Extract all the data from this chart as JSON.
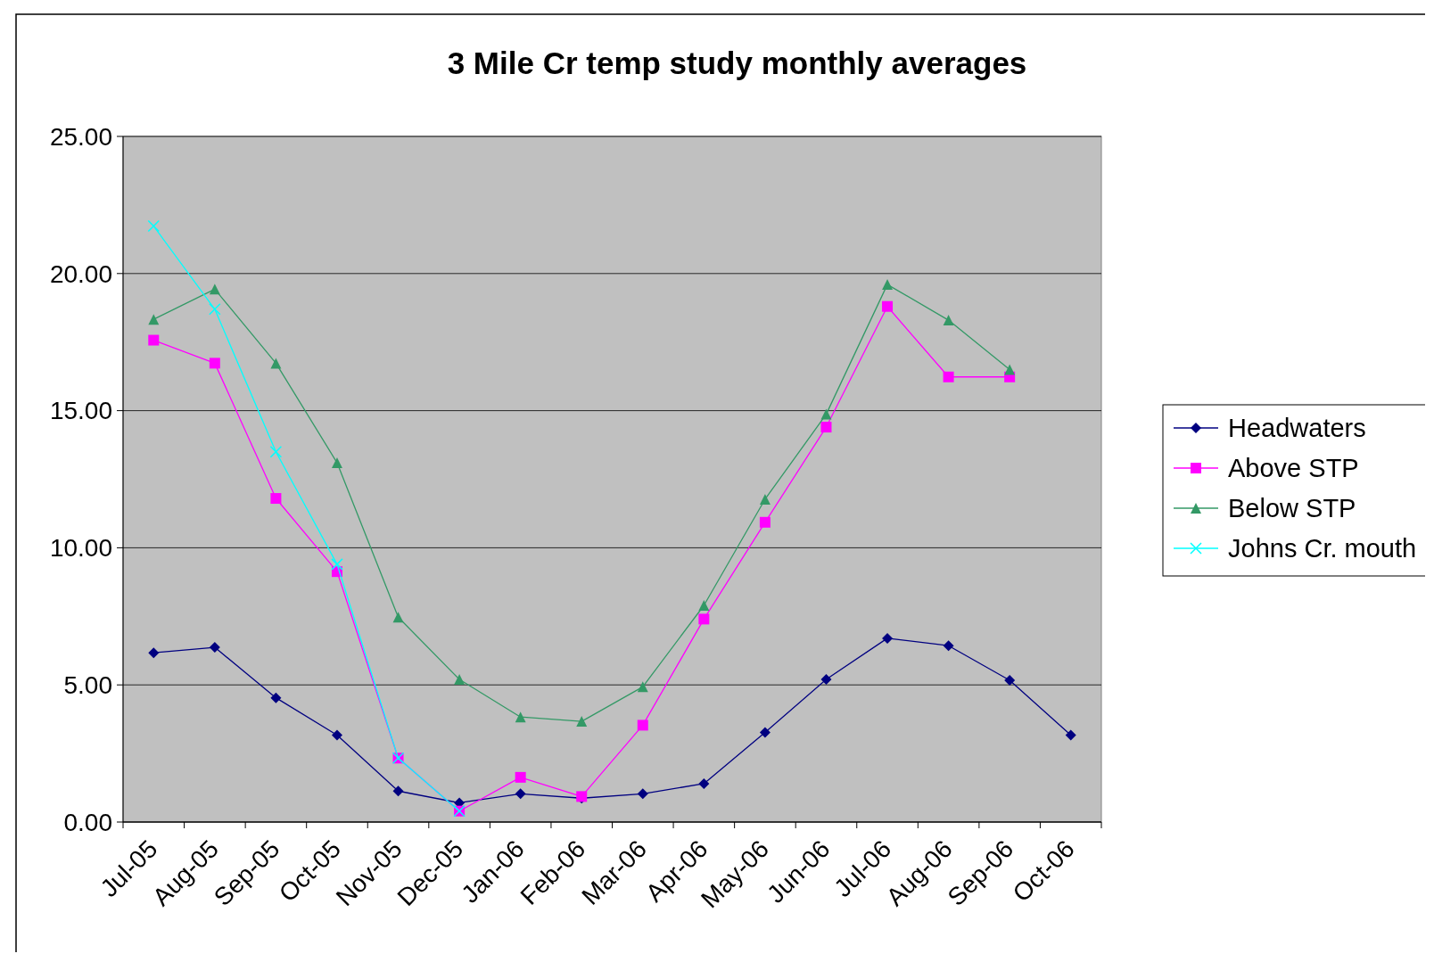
{
  "chart_data": {
    "type": "line",
    "title": "3 Mile Cr temp study monthly averages",
    "categories": [
      "Jul-05",
      "Aug-05",
      "Sep-05",
      "Oct-05",
      "Nov-05",
      "Dec-05",
      "Jan-06",
      "Feb-06",
      "Mar-06",
      "Apr-06",
      "May-06",
      "Jun-06",
      "Jul-06",
      "Aug-06",
      "Sep-06",
      "Oct-06"
    ],
    "series": [
      {
        "name": "Headwaters",
        "color": "#000080",
        "marker": "diamond",
        "values": [
          6.17,
          6.37,
          4.53,
          3.17,
          1.13,
          0.7,
          1.03,
          0.87,
          1.03,
          1.4,
          3.27,
          5.2,
          6.7,
          6.43,
          5.17,
          3.17
        ]
      },
      {
        "name": "Above STP",
        "color": "#ff00ff",
        "marker": "square",
        "values": [
          17.57,
          16.73,
          11.8,
          9.13,
          2.33,
          0.4,
          1.63,
          0.93,
          3.53,
          7.4,
          10.93,
          14.4,
          18.8,
          16.23,
          16.23,
          null
        ]
      },
      {
        "name": "Below STP",
        "color": "#339966",
        "marker": "triangle",
        "values": [
          18.33,
          19.43,
          16.73,
          13.1,
          7.47,
          5.2,
          3.83,
          3.67,
          4.93,
          7.9,
          11.77,
          14.87,
          19.6,
          18.3,
          16.5,
          null
        ]
      },
      {
        "name": "Johns Cr. mouth",
        "color": "#00ffff",
        "marker": "cross",
        "values": [
          21.73,
          18.7,
          13.5,
          9.4,
          2.33,
          0.4,
          null,
          null,
          null,
          null,
          null,
          null,
          null,
          null,
          null,
          null
        ]
      }
    ],
    "ylim": [
      0,
      25
    ],
    "yticks": [
      {
        "value": 0,
        "label": "0.00"
      },
      {
        "value": 5,
        "label": "5.00"
      },
      {
        "value": 10,
        "label": "10.00"
      },
      {
        "value": 15,
        "label": "15.00"
      },
      {
        "value": 20,
        "label": "20.00"
      },
      {
        "value": 25,
        "label": "25.00"
      }
    ],
    "grid": "y",
    "legend": "right",
    "line_style": "solid"
  }
}
